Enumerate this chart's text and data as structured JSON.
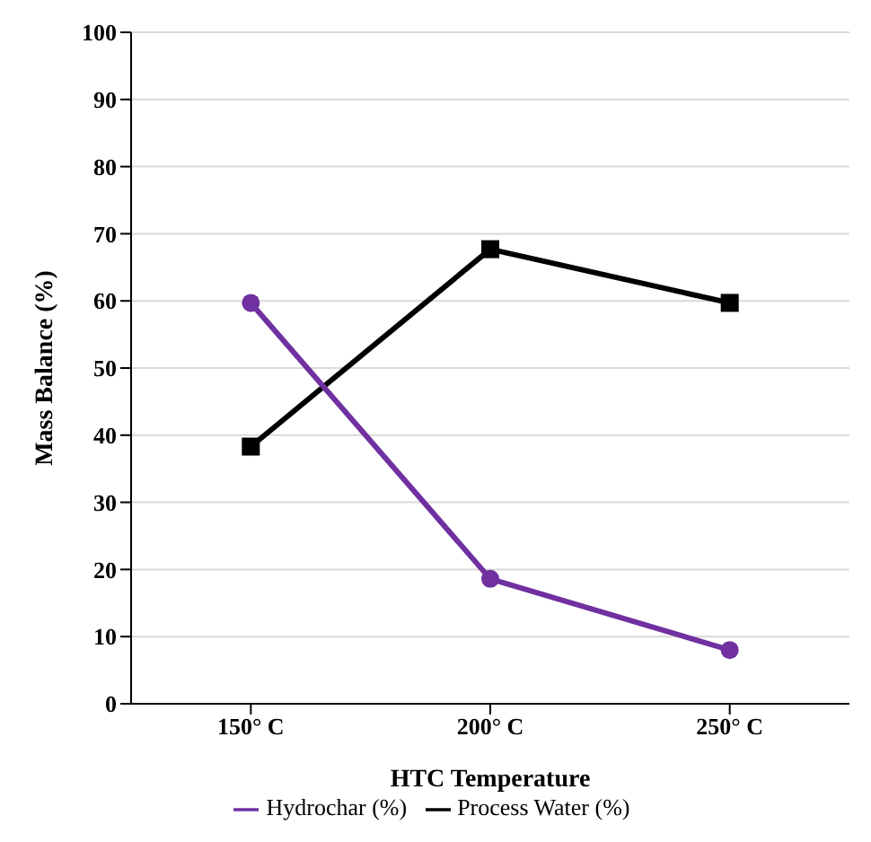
{
  "chart_data": {
    "type": "line",
    "xlabel": "HTC Temperature",
    "ylabel": "Mass Balance (%)",
    "categories": [
      "150° C",
      "200° C",
      "250° C"
    ],
    "series": [
      {
        "name": "Process Water (%)",
        "color": "#000000",
        "values": [
          38.3,
          67.7,
          59.7
        ],
        "marker": "square"
      },
      {
        "name": "Hydrochar (%)",
        "color": "#7030a0",
        "values": [
          59.7,
          18.6,
          8.0
        ],
        "marker": "circle"
      }
    ],
    "ylim": [
      0,
      100
    ],
    "yticks": [
      0,
      10,
      20,
      30,
      40,
      50,
      60,
      70,
      80,
      90,
      100
    ],
    "grid": "y",
    "legend": "bottom",
    "line_style": "solid"
  }
}
